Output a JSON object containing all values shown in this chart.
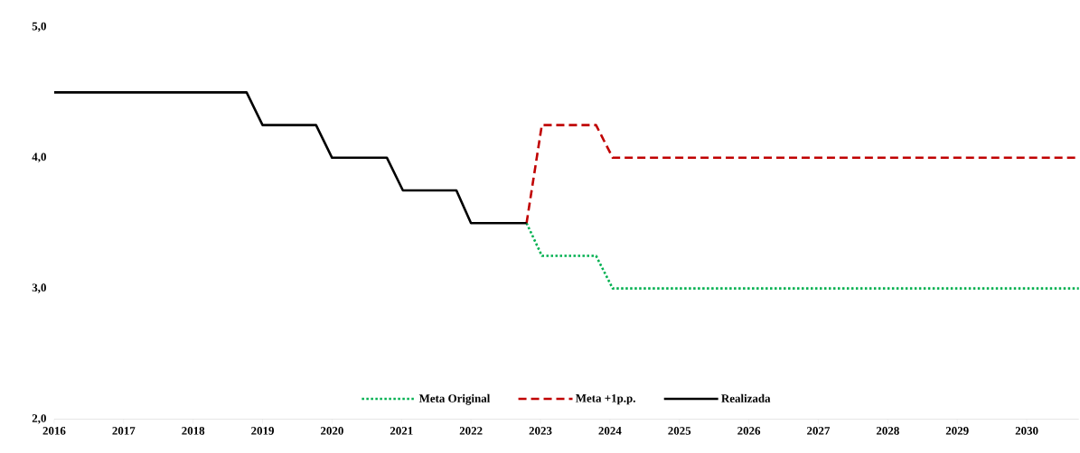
{
  "chart_data": {
    "type": "line",
    "xlim": [
      2016,
      2030.75
    ],
    "xticks": [
      2016,
      2017,
      2018,
      2019,
      2020,
      2021,
      2022,
      2023,
      2024,
      2025,
      2026,
      2027,
      2028,
      2029,
      2030
    ],
    "ylim": [
      2,
      5
    ],
    "yticks": [
      {
        "value": 2,
        "label": "2,0"
      },
      {
        "value": 3,
        "label": "3,0"
      },
      {
        "value": 4,
        "label": "4,0"
      },
      {
        "value": 5,
        "label": "5,0"
      }
    ],
    "legend": "bottom",
    "series": [
      {
        "name": "Meta Original",
        "color": "#00b050",
        "line_style": "dotted",
        "x": [
          2022.8,
          2023.02,
          2023.8,
          2024.04,
          2030.75
        ],
        "values": [
          3.5,
          3.25,
          3.25,
          3.0,
          3.0
        ]
      },
      {
        "name": "Meta +1p.p.",
        "color": "#c00000",
        "line_style": "dashed",
        "x": [
          2022.8,
          2023.02,
          2023.8,
          2024.04,
          2030.75
        ],
        "values": [
          3.5,
          4.25,
          4.25,
          4.0,
          4.0
        ]
      },
      {
        "name": "Realizada",
        "color": "#000000",
        "line_style": "solid",
        "x": [
          2016,
          2018.77,
          2019.0,
          2019.77,
          2020.0,
          2020.79,
          2021.02,
          2021.79,
          2022.0,
          2022.8
        ],
        "values": [
          4.5,
          4.5,
          4.25,
          4.25,
          4.0,
          4.0,
          3.75,
          3.75,
          3.5,
          3.5
        ]
      }
    ]
  }
}
